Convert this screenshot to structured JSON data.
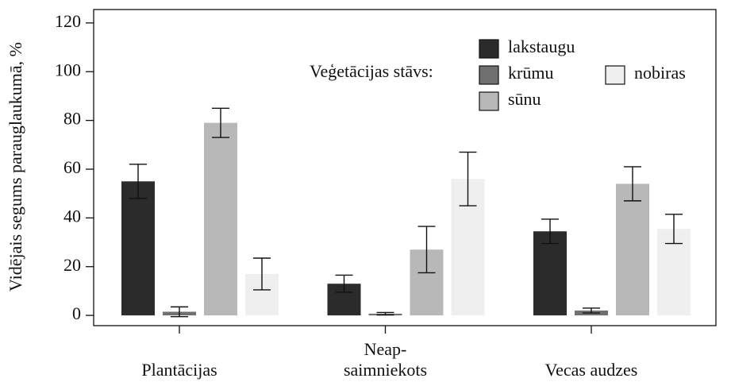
{
  "chart_data": {
    "type": "bar",
    "ylabel": "Vidējais segums parauglaukumā, %",
    "legend_title": "Veģetācijas stāvs:",
    "legend_position": "top-right",
    "categories": [
      "Plantācijas",
      "Neap-\nsaimniekots",
      "Vecas audzes"
    ],
    "series": [
      {
        "name": "lakstaugu",
        "color": "#2b2b2b",
        "values": [
          55,
          13,
          34.5
        ],
        "errors": [
          7,
          3.5,
          5
        ]
      },
      {
        "name": "krūmu",
        "color": "#707070",
        "values": [
          1.5,
          0.7,
          2
        ],
        "errors": [
          2,
          0.5,
          1
        ]
      },
      {
        "name": "sūnu",
        "color": "#b8b8b8",
        "values": [
          79,
          27,
          54
        ],
        "errors": [
          6,
          9.5,
          7
        ]
      },
      {
        "name": "nobiras",
        "color": "#efefef",
        "values": [
          17,
          56,
          35.5
        ],
        "errors": [
          6.5,
          11,
          6
        ]
      }
    ],
    "ylim": [
      -4.2,
      125.5
    ],
    "yticks": [
      0,
      20,
      40,
      60,
      80,
      100,
      120
    ]
  }
}
